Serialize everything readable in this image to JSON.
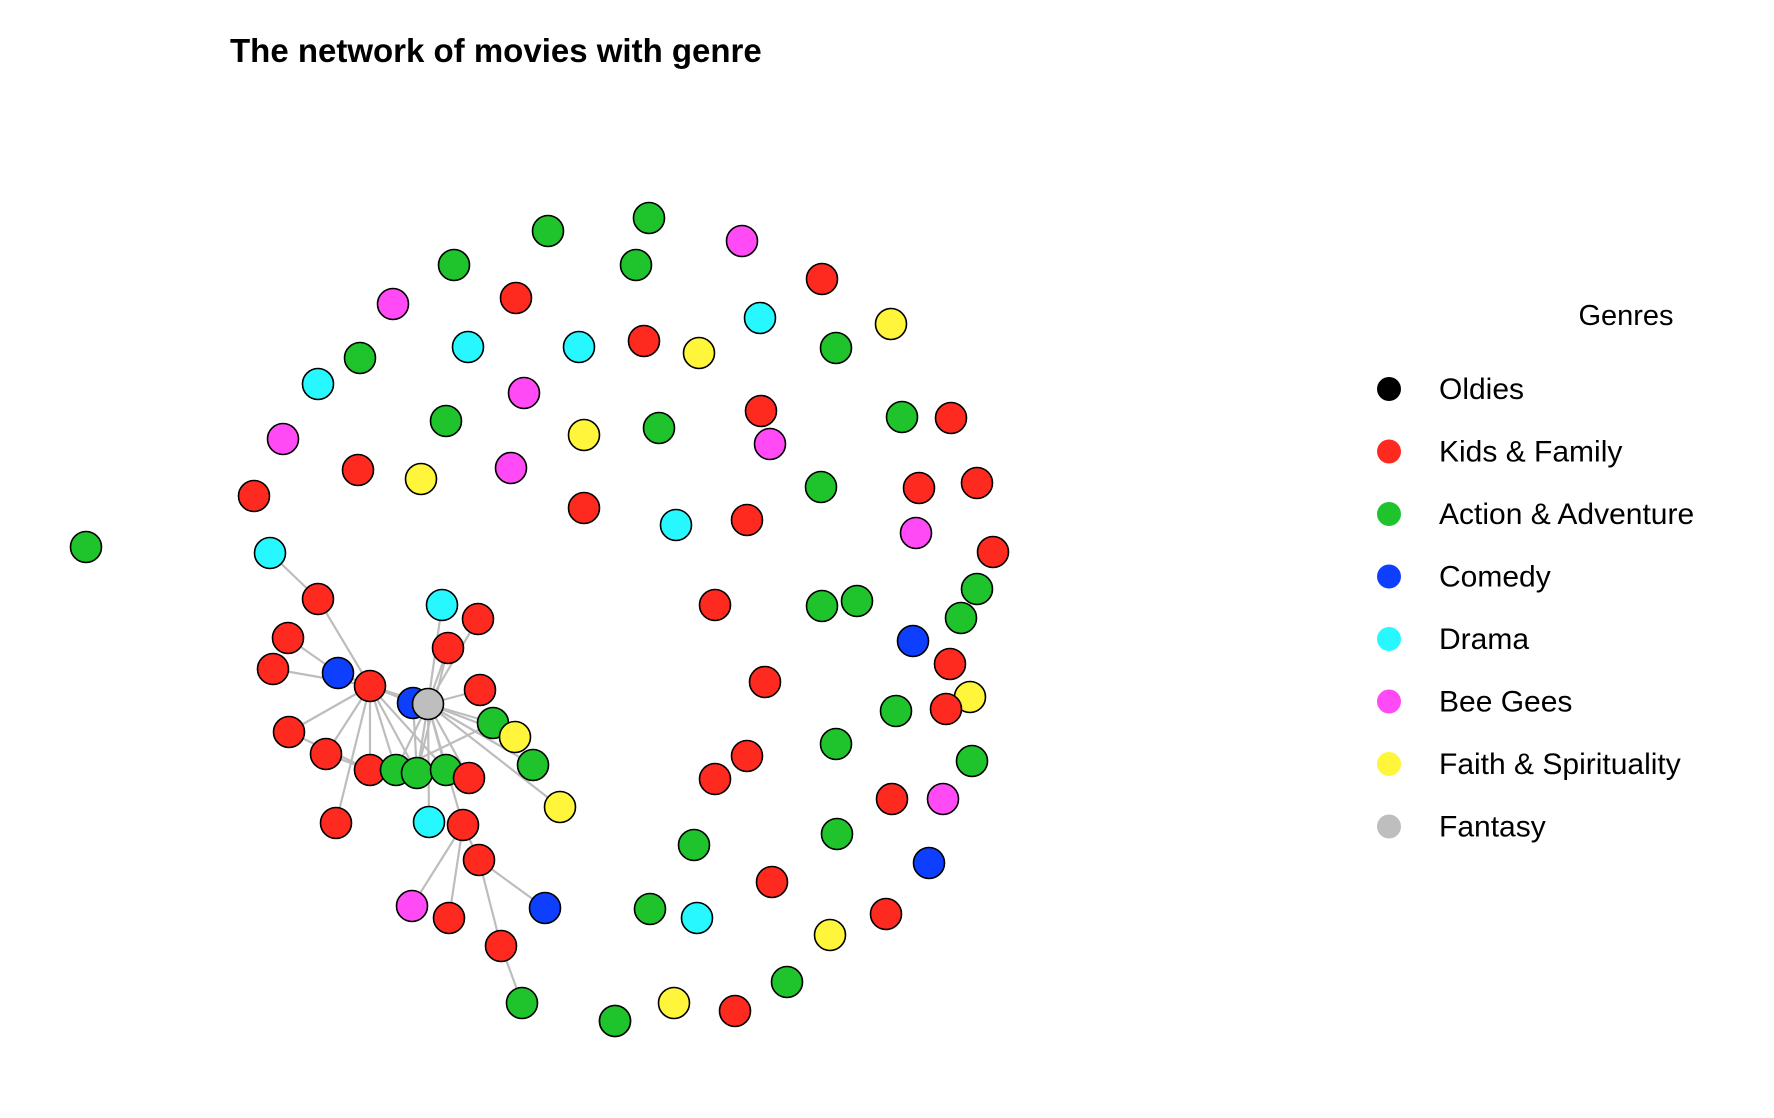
{
  "title": "The network of movies with genre",
  "legend": {
    "title": "Genres",
    "items": [
      {
        "label": "Oldies",
        "color": "#000000"
      },
      {
        "label": "Kids & Family",
        "color": "#FF2A1F"
      },
      {
        "label": "Action & Adventure",
        "color": "#1FC32B"
      },
      {
        "label": "Comedy",
        "color": "#0E3FFF"
      },
      {
        "label": "Drama",
        "color": "#27F8FF"
      },
      {
        "label": "Bee Gees",
        "color": "#FF4AF5"
      },
      {
        "label": "Faith & Spirituality",
        "color": "#FFF53A"
      },
      {
        "label": "Fantasy",
        "color": "#BEBEBE"
      }
    ]
  }
}
